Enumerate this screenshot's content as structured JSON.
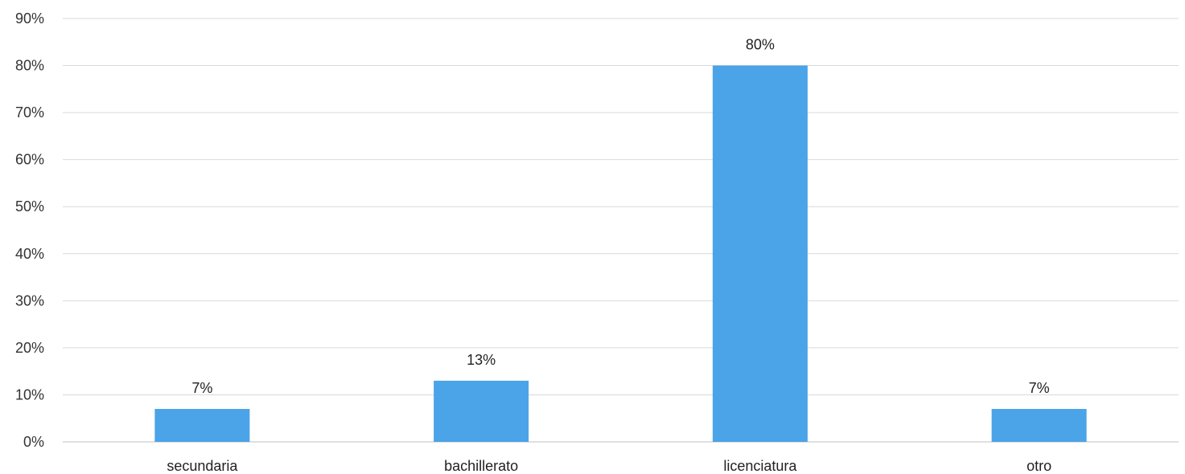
{
  "chart_data": {
    "type": "bar",
    "categories": [
      "secundaria",
      "bachillerato",
      "licenciatura",
      "otro"
    ],
    "values": [
      7,
      13,
      80,
      7
    ],
    "data_labels": [
      "7%",
      "13%",
      "80%",
      "7%"
    ],
    "ylim": [
      0,
      90
    ],
    "yticks": [
      0,
      10,
      20,
      30,
      40,
      50,
      60,
      70,
      80,
      90
    ],
    "ytick_labels": [
      "0%",
      "10%",
      "20%",
      "30%",
      "40%",
      "50%",
      "60%",
      "70%",
      "80%",
      "90%"
    ],
    "grid": true,
    "bar_color": "#4ba3e8"
  }
}
